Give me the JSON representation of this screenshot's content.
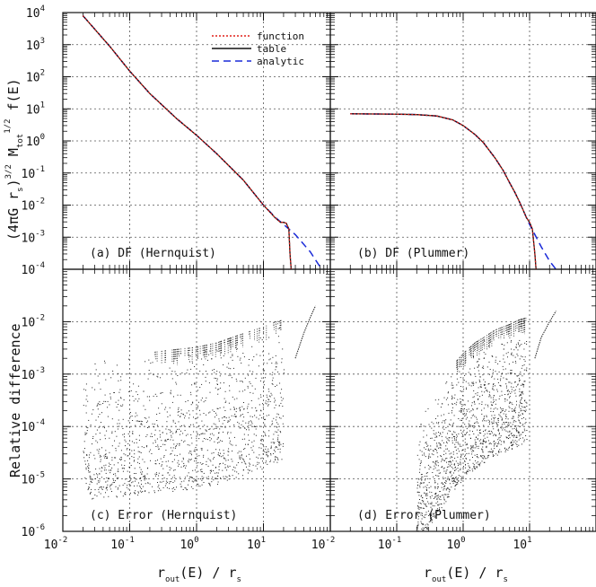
{
  "figure": {
    "ylabel_top": "(4πG r_s)^{3/2} M_tot^{1/2} f(E)",
    "ylabel_bottom": "Relative difference",
    "xlabel": "r_out(E) / r_s"
  },
  "legend": [
    {
      "label": "function",
      "color": "#e0201a",
      "style": "dotted"
    },
    {
      "label": "table",
      "color": "#111111",
      "style": "solid"
    },
    {
      "label": "analytic",
      "color": "#1a2ad8",
      "style": "dashed"
    }
  ],
  "chart_data": [
    {
      "id": "a",
      "type": "line",
      "label": "(a) DF (Hernquist)",
      "xscale": "log",
      "yscale": "log",
      "xlim": [
        0.01,
        100
      ],
      "ylim": [
        0.0001,
        10000
      ],
      "grid": true,
      "legend_position": "top-right",
      "series": [
        {
          "name": "function",
          "color": "#e0201a",
          "x": [
            0.02,
            0.05,
            0.1,
            0.2,
            0.5,
            1,
            2,
            5,
            10,
            15,
            18,
            20,
            22,
            24,
            25,
            26
          ],
          "y": [
            8000,
            900,
            150,
            30,
            5,
            1.5,
            0.4,
            0.06,
            0.01,
            0.004,
            0.0029,
            0.0029,
            0.0027,
            0.0018,
            0.0003,
            0.0001
          ]
        },
        {
          "name": "table",
          "color": "#111111",
          "x": [
            0.02,
            0.05,
            0.1,
            0.2,
            0.5,
            1,
            2,
            5,
            10,
            15,
            18,
            20,
            22,
            24,
            25,
            26
          ],
          "y": [
            8000,
            900,
            150,
            30,
            5,
            1.5,
            0.4,
            0.06,
            0.01,
            0.004,
            0.0029,
            0.0029,
            0.0027,
            0.0018,
            0.0003,
            0.0001
          ]
        },
        {
          "name": "analytic",
          "color": "#1a2ad8",
          "x": [
            0.02,
            0.05,
            0.1,
            0.2,
            0.5,
            1,
            2,
            5,
            10,
            15,
            20,
            30,
            50,
            70
          ],
          "y": [
            8000,
            900,
            150,
            30,
            5,
            1.5,
            0.4,
            0.06,
            0.01,
            0.0042,
            0.0025,
            0.0012,
            0.00035,
            0.00012
          ]
        }
      ]
    },
    {
      "id": "b",
      "type": "line",
      "label": "(b) DF (Plummer)",
      "xscale": "log",
      "yscale": "log",
      "xlim": [
        0.01,
        100
      ],
      "ylim": [
        0.0001,
        10000
      ],
      "grid": true,
      "series": [
        {
          "name": "function",
          "color": "#e0201a",
          "x": [
            0.02,
            0.05,
            0.1,
            0.2,
            0.4,
            0.7,
            1,
            1.5,
            2,
            3,
            4,
            5,
            6,
            7,
            8,
            9,
            10,
            11,
            12,
            12.5
          ],
          "y": [
            7,
            6.9,
            6.8,
            6.6,
            6.0,
            4.5,
            3.0,
            1.6,
            0.9,
            0.3,
            0.12,
            0.05,
            0.025,
            0.013,
            0.007,
            0.004,
            0.0029,
            0.0018,
            0.0003,
            0.0001
          ]
        },
        {
          "name": "table",
          "color": "#111111",
          "x": [
            0.02,
            0.05,
            0.1,
            0.2,
            0.4,
            0.7,
            1,
            1.5,
            2,
            3,
            4,
            5,
            6,
            7,
            8,
            9,
            10,
            11,
            12,
            12.5
          ],
          "y": [
            7,
            6.9,
            6.8,
            6.6,
            6.0,
            4.5,
            3.0,
            1.6,
            0.9,
            0.3,
            0.12,
            0.05,
            0.025,
            0.013,
            0.007,
            0.004,
            0.0029,
            0.0018,
            0.0003,
            0.0001
          ]
        },
        {
          "name": "analytic",
          "color": "#1a2ad8",
          "x": [
            0.02,
            0.05,
            0.1,
            0.2,
            0.4,
            0.7,
            1,
            1.5,
            2,
            3,
            4,
            5,
            6,
            7,
            8,
            9,
            10,
            12,
            15,
            20,
            25
          ],
          "y": [
            7,
            6.9,
            6.8,
            6.6,
            6.0,
            4.5,
            3.0,
            1.6,
            0.9,
            0.3,
            0.12,
            0.05,
            0.025,
            0.013,
            0.007,
            0.004,
            0.0025,
            0.0012,
            0.0005,
            0.00018,
            0.0001
          ]
        }
      ]
    },
    {
      "id": "c",
      "type": "scatter",
      "label": "(c) Error (Hernquist)",
      "xscale": "log",
      "yscale": "log",
      "xlim": [
        0.01,
        100
      ],
      "ylim": [
        1e-06,
        0.1
      ],
      "grid": true,
      "upper_envelope": {
        "x": [
          0.02,
          0.05,
          0.1,
          0.2,
          0.5,
          1,
          2,
          5,
          10,
          15,
          20
        ],
        "y": [
          0.002,
          0.0022,
          0.0024,
          0.0026,
          0.003,
          0.0033,
          0.004,
          0.006,
          0.008,
          0.01,
          0.011
        ]
      },
      "spread_decades": 2.7,
      "tail": {
        "x": [
          30,
          40,
          50,
          60
        ],
        "y": [
          0.002,
          0.006,
          0.012,
          0.02
        ]
      }
    },
    {
      "id": "d",
      "type": "scatter",
      "label": "(d) Error (Plummer)",
      "xscale": "log",
      "yscale": "log",
      "xlim": [
        0.01,
        100
      ],
      "ylim": [
        1e-06,
        0.1
      ],
      "grid": true,
      "upper_envelope": {
        "x": [
          0.2,
          0.3,
          0.5,
          0.7,
          1,
          1.5,
          2,
          3,
          5,
          7,
          9
        ],
        "y": [
          0.0001,
          0.0003,
          0.0008,
          0.0015,
          0.0025,
          0.004,
          0.005,
          0.007,
          0.009,
          0.011,
          0.012
        ]
      },
      "spread_decades": 2.4,
      "tail": {
        "x": [
          12,
          15,
          20,
          25
        ],
        "y": [
          0.002,
          0.005,
          0.01,
          0.016
        ]
      }
    }
  ]
}
